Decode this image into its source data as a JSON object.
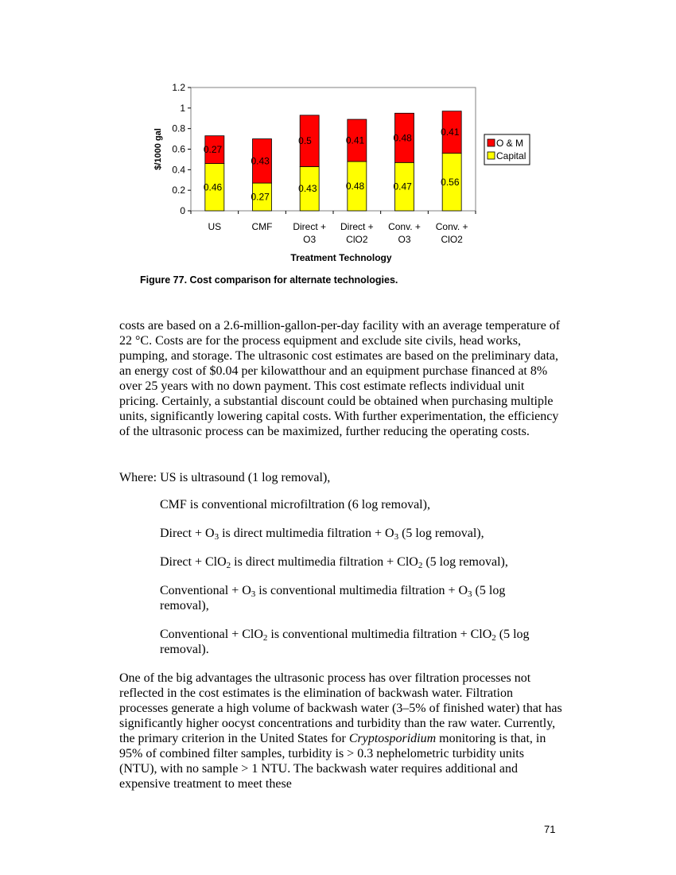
{
  "figure": {
    "caption": "Figure 77.  Cost comparison for alternate technologies."
  },
  "chart_data": {
    "type": "bar",
    "stacked": true,
    "categories": [
      [
        "US"
      ],
      [
        "CMF"
      ],
      [
        "Direct +",
        "O3"
      ],
      [
        "Direct +",
        "ClO2"
      ],
      [
        "Conv. +",
        "O3"
      ],
      [
        "Conv. +",
        "ClO2"
      ]
    ],
    "series": [
      {
        "name": "Capital",
        "values": [
          0.46,
          0.27,
          0.43,
          0.48,
          0.47,
          0.56
        ],
        "labels": [
          "0.46",
          "0.27",
          "0.43",
          "0.48",
          "0.47",
          "0.56"
        ],
        "color": "#ffff00"
      },
      {
        "name": "O & M",
        "values": [
          0.27,
          0.43,
          0.5,
          0.41,
          0.48,
          0.41
        ],
        "labels": [
          "0.27",
          "0.43",
          "0.5",
          "0.41",
          "0.48",
          "0.41"
        ],
        "color": "#ff0000"
      }
    ],
    "ylim": [
      0,
      1.2
    ],
    "yticks": [
      "0",
      "0.2",
      "0.4",
      "0.6",
      "0.8",
      "1",
      "1.2"
    ],
    "ylabel": "$/1000 gal",
    "xlabel": "Treatment Technology",
    "legend": [
      "O & M",
      "Capital"
    ],
    "legend_position": "right",
    "grid": false,
    "plot_background": "#ffffff"
  },
  "text": {
    "p1": "costs are based on a 2.6-million-gallon-per-day facility with an average temperature of 22 °C.  Costs are for the process equipment and exclude site civils, head works, pumping, and storage.  The ultrasonic cost estimates are based on the preliminary data, an energy cost of $0.04 per kilowatthour and an equipment purchase financed at 8% over 25 years with no down payment.  This cost estimate reflects individual unit pricing.  Certainly, a substantial discount could be obtained when purchasing multiple units, significantly lowering capital costs. With further experimentation, the efficiency of the ultrasonic process can be maximized, further reducing the operating costs.",
    "where": "Where:  US is ultrasound (1 log removal),",
    "d1": "CMF is conventional microfiltration (6 log removal),",
    "d2_a": "Direct + O",
    "d2_sub1": "3",
    "d2_b": " is direct multimedia filtration + O",
    "d2_sub2": "3",
    "d2_c": " (5 log removal),",
    "d3_a": "Direct + ClO",
    "d3_sub1": "2",
    "d3_b": " is direct multimedia filtration + ClO",
    "d3_sub2": "2",
    "d3_c": " (5 log removal),",
    "d4_a": "Conventional + O",
    "d4_sub1": "3",
    "d4_b": " is conventional multimedia filtration + O",
    "d4_sub2": "3",
    "d4_c": " (5 log removal),",
    "d5_a": "Conventional + ClO",
    "d5_sub1": "2",
    "d5_b": " is conventional multimedia filtration + ClO",
    "d5_sub2": "2",
    "d5_c": " (5 log removal).",
    "p3_a": "One of the big advantages the ultrasonic process has over filtration processes not reflected in the cost estimates is the elimination of backwash water. Filtration processes generate a high volume of backwash water (3–5% of finished water) that has significantly higher oocyst concentrations and turbidity than the raw water.  Currently, the primary criterion in the United States for ",
    "p3_italic": "Cryptosporidium",
    "p3_b": " monitoring is that, in 95% of combined filter samples, turbidity is > 0.3 nephelometric turbidity units (NTU), with no sample > 1 NTU.  The backwash water requires additional and expensive treatment to meet these"
  },
  "page_number": "71"
}
